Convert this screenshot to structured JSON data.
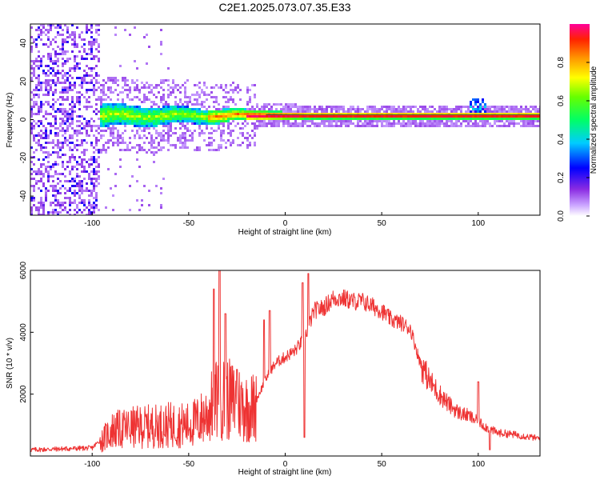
{
  "title": "C2E1.2025.073.07.35.E33",
  "colors": {
    "snr_line": "#ee3333",
    "frame": "#000000",
    "spectrogram_background": "#ffffff",
    "peak_line": "#333333"
  },
  "chart_data": [
    {
      "type": "heatmap",
      "xlabel": "Height of straight line (km)",
      "ylabel": "Frequency (Hz)",
      "xlim": [
        -132,
        132
      ],
      "ylim": [
        -50,
        50
      ],
      "xticks": [
        -100,
        -50,
        0,
        50,
        100
      ],
      "xtick_labels": [
        "-100",
        "-50",
        "0",
        "50",
        "100"
      ],
      "yticks": [
        -40,
        -20,
        0,
        20,
        40
      ],
      "ytick_labels": [
        "-40",
        "-20",
        "0",
        "20",
        "40"
      ],
      "grid": false,
      "colorbar": {
        "label": "Normalized spectral amplitude",
        "range": [
          0,
          1
        ],
        "ticks": [
          0.0,
          0.2,
          0.4,
          0.6,
          0.8
        ],
        "tick_labels": [
          "0.0",
          "0.2",
          "0.4",
          "0.6",
          "0.8"
        ],
        "colormap": "rainbow (white-violet-blue-cyan-green-yellow-orange-red-magenta)"
      },
      "features": {
        "noise_region_x": [
          -132,
          -96
        ],
        "signal_band_center_hz": 2,
        "signal_band_halfwidth_hz_near_x_minus_90": 5,
        "signal_band_halfwidth_hz_near_x_100": 2,
        "broad_halo_x": [
          -96,
          -15
        ],
        "disturbance_at_x": 100
      }
    },
    {
      "type": "line",
      "xlabel": "Height of straight line (km)",
      "ylabel": "SNR (10 * v/v)",
      "xlim": [
        -132,
        132
      ],
      "ylim": [
        0,
        6000
      ],
      "xticks": [
        -100,
        -50,
        0,
        50,
        100
      ],
      "xtick_labels": [
        "-100",
        "-50",
        "0",
        "50",
        "100"
      ],
      "yticks": [
        2000,
        4000,
        6000
      ],
      "ytick_labels": [
        "2000",
        "4000",
        "6000"
      ],
      "grid": false,
      "series": [
        {
          "color": "#ee3333",
          "envelope_x": [
            -132,
            -100,
            -96,
            -90,
            -80,
            -70,
            -60,
            -50,
            -45,
            -40,
            -35,
            -30,
            -25,
            -20,
            -15,
            -10,
            -5,
            0,
            5,
            10,
            15,
            20,
            25,
            30,
            35,
            40,
            45,
            50,
            55,
            60,
            65,
            70,
            75,
            80,
            85,
            90,
            95,
            100,
            105,
            110,
            115,
            120,
            132
          ],
          "envelope_y": [
            200,
            260,
            500,
            950,
            1050,
            1100,
            1150,
            1150,
            1300,
            1600,
            2200,
            2100,
            2000,
            1800,
            1800,
            2500,
            3000,
            3200,
            3400,
            3800,
            4700,
            4800,
            5100,
            5100,
            5000,
            5000,
            4850,
            4700,
            4400,
            4300,
            4100,
            3000,
            2400,
            2000,
            1650,
            1400,
            1300,
            1100,
            900,
            750,
            720,
            680,
            560
          ],
          "spikes": [
            {
              "x": -34,
              "y": 6000
            },
            {
              "x": -37,
              "y": 5400
            },
            {
              "x": -31,
              "y": 4600
            },
            {
              "x": -25,
              "y": 2800
            },
            {
              "x": -11,
              "y": 4400
            },
            {
              "x": -8,
              "y": 4700
            },
            {
              "x": 9,
              "y": 5600
            },
            {
              "x": 12,
              "y": 5900
            },
            {
              "x": 10,
              "y": 600
            },
            {
              "x": 106,
              "y": 200
            },
            {
              "x": 100,
              "y": 2400
            }
          ]
        }
      ]
    }
  ]
}
